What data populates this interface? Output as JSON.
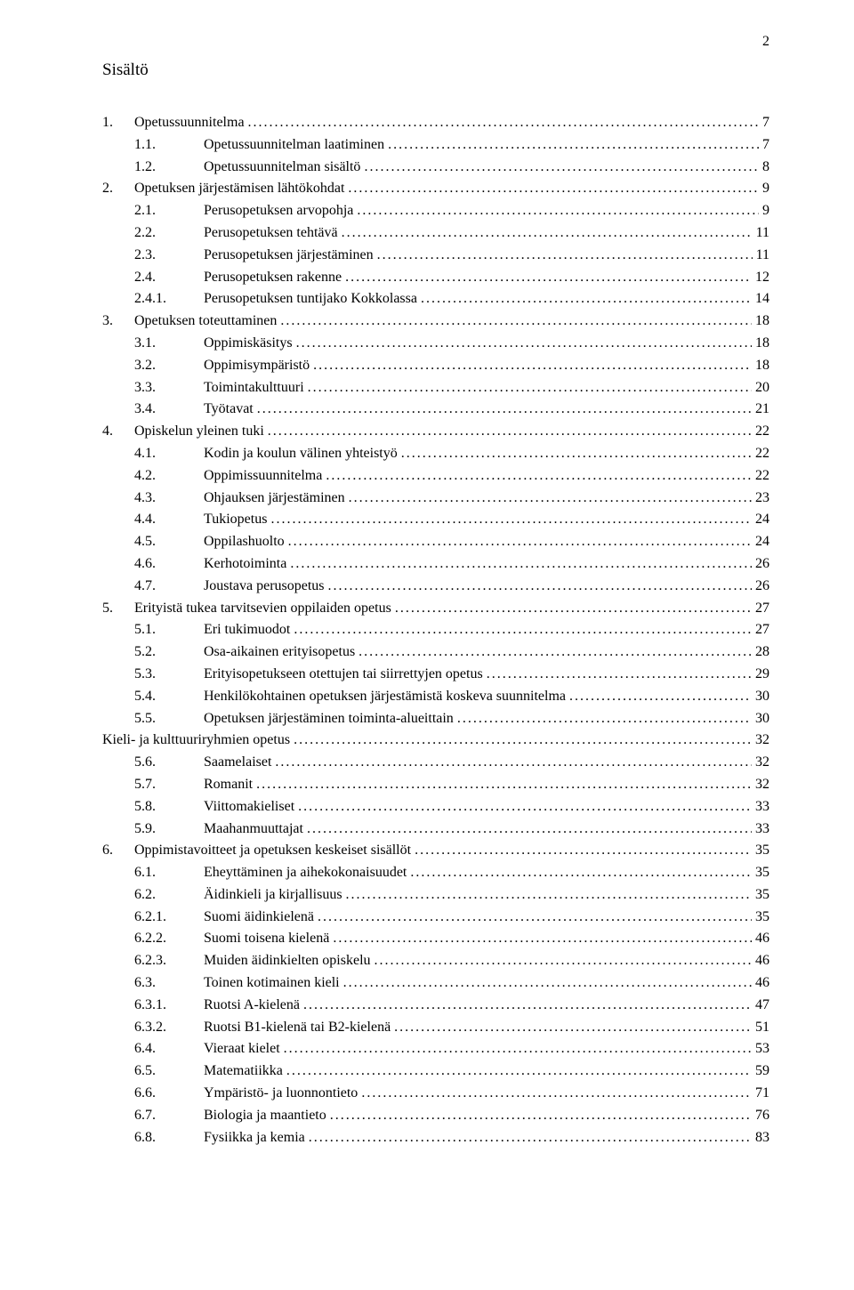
{
  "page_number": "2",
  "title": "Sisältö",
  "font_family": "Times New Roman",
  "text_color": "#000000",
  "background_color": "#ffffff",
  "entries": [
    {
      "level": 1,
      "num": "1.",
      "label": "Opetussuunnitelma",
      "page": "7"
    },
    {
      "level": 2,
      "num": "1.1.",
      "label": "Opetussuunnitelman laatiminen",
      "page": "7"
    },
    {
      "level": 2,
      "num": "1.2.",
      "label": "Opetussuunnitelman sisältö",
      "page": "8"
    },
    {
      "level": 1,
      "num": "2.",
      "label": "Opetuksen järjestämisen lähtökohdat",
      "page": "9"
    },
    {
      "level": 2,
      "num": "2.1.",
      "label": "Perusopetuksen arvopohja",
      "page": "9"
    },
    {
      "level": 2,
      "num": "2.2.",
      "label": "Perusopetuksen tehtävä",
      "page": "11"
    },
    {
      "level": 2,
      "num": "2.3.",
      "label": "Perusopetuksen järjestäminen",
      "page": "11"
    },
    {
      "level": 2,
      "num": "2.4.",
      "label": "Perusopetuksen rakenne",
      "page": "12"
    },
    {
      "level": 3,
      "num": "2.4.1.",
      "label": "Perusopetuksen tuntijako Kokkolassa",
      "page": "14"
    },
    {
      "level": 1,
      "num": "3.",
      "label": "Opetuksen toteuttaminen",
      "page": "18"
    },
    {
      "level": 2,
      "num": "3.1.",
      "label": "Oppimiskäsitys",
      "page": "18"
    },
    {
      "level": 2,
      "num": "3.2.",
      "label": "Oppimisympäristö",
      "page": "18"
    },
    {
      "level": 2,
      "num": "3.3.",
      "label": "Toimintakulttuuri",
      "page": "20"
    },
    {
      "level": 2,
      "num": "3.4.",
      "label": "Työtavat",
      "page": "21"
    },
    {
      "level": 1,
      "num": "4.",
      "label": "Opiskelun yleinen tuki",
      "page": "22"
    },
    {
      "level": 2,
      "num": "4.1.",
      "label": "Kodin ja koulun välinen yhteistyö",
      "page": "22"
    },
    {
      "level": 2,
      "num": "4.2.",
      "label": "Oppimissuunnitelma",
      "page": "22"
    },
    {
      "level": 2,
      "num": "4.3.",
      "label": "Ohjauksen järjestäminen",
      "page": "23"
    },
    {
      "level": 2,
      "num": "4.4.",
      "label": "Tukiopetus",
      "page": "24"
    },
    {
      "level": 2,
      "num": "4.5.",
      "label": "Oppilashuolto",
      "page": "24"
    },
    {
      "level": 2,
      "num": "4.6.",
      "label": "Kerhotoiminta",
      "page": "26"
    },
    {
      "level": 2,
      "num": "4.7.",
      "label": "Joustava perusopetus",
      "page": "26"
    },
    {
      "level": 1,
      "num": "5.",
      "label": "Erityistä tukea tarvitsevien oppilaiden opetus",
      "page": "27"
    },
    {
      "level": 2,
      "num": "5.1.",
      "label": "Eri tukimuodot",
      "page": "27"
    },
    {
      "level": 2,
      "num": "5.2.",
      "label": "Osa-aikainen erityisopetus",
      "page": "28"
    },
    {
      "level": 2,
      "num": "5.3.",
      "label": "Erityisopetukseen otettujen tai siirrettyjen opetus",
      "page": "29"
    },
    {
      "level": 2,
      "num": "5.4.",
      "label": "Henkilökohtainen opetuksen järjestämistä koskeva suunnitelma",
      "page": "30"
    },
    {
      "level": 2,
      "num": "5.5.",
      "label": "Opetuksen järjestäminen toiminta-alueittain",
      "page": "30"
    },
    {
      "level": 0,
      "num": "",
      "label": "Kieli- ja kulttuuriryhmien opetus",
      "page": "32"
    },
    {
      "level": 2,
      "num": "5.6.",
      "label": "Saamelaiset",
      "page": "32"
    },
    {
      "level": 2,
      "num": "5.7.",
      "label": "Romanit",
      "page": "32"
    },
    {
      "level": 2,
      "num": "5.8.",
      "label": "Viittomakieliset",
      "page": "33"
    },
    {
      "level": 2,
      "num": "5.9.",
      "label": "Maahanmuuttajat",
      "page": "33"
    },
    {
      "level": 1,
      "num": "6.",
      "label": "Oppimistavoitteet ja opetuksen keskeiset sisällöt",
      "page": "35"
    },
    {
      "level": 2,
      "num": "6.1.",
      "label": "Eheyttäminen ja aihekokonaisuudet",
      "page": "35"
    },
    {
      "level": 2,
      "num": "6.2.",
      "label": "Äidinkieli ja kirjallisuus",
      "page": "35"
    },
    {
      "level": 3,
      "num": "6.2.1.",
      "label": "Suomi äidinkielenä",
      "page": "35"
    },
    {
      "level": 3,
      "num": "6.2.2.",
      "label": "Suomi toisena kielenä",
      "page": "46"
    },
    {
      "level": 3,
      "num": "6.2.3.",
      "label": "Muiden äidinkielten opiskelu",
      "page": "46"
    },
    {
      "level": 2,
      "num": "6.3.",
      "label": "Toinen kotimainen kieli",
      "page": "46"
    },
    {
      "level": 3,
      "num": "6.3.1.",
      "label": "Ruotsi A-kielenä",
      "page": "47"
    },
    {
      "level": 3,
      "num": "6.3.2.",
      "label": "Ruotsi B1-kielenä tai B2-kielenä",
      "page": "51"
    },
    {
      "level": 2,
      "num": "6.4.",
      "label": "Vieraat kielet",
      "page": "53"
    },
    {
      "level": 2,
      "num": "6.5.",
      "label": "Matematiikka",
      "page": "59"
    },
    {
      "level": 2,
      "num": "6.6.",
      "label": "Ympäristö- ja luonnontieto",
      "page": "71"
    },
    {
      "level": 2,
      "num": "6.7.",
      "label": "Biologia ja maantieto",
      "page": "76"
    },
    {
      "level": 2,
      "num": "6.8.",
      "label": "Fysiikka ja kemia",
      "page": "83"
    }
  ]
}
